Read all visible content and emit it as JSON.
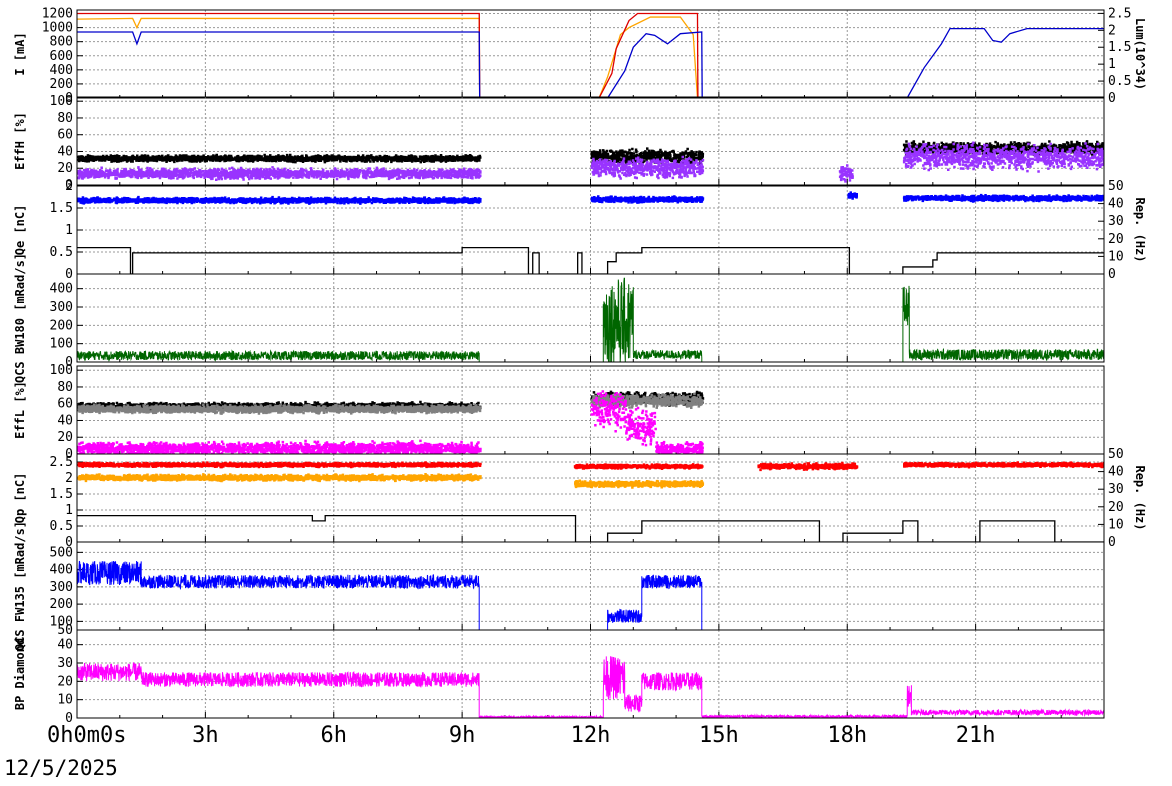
{
  "date_label": "12/5/2025",
  "time_axis": {
    "ticks": [
      {
        "hour": 0,
        "label": "0h0m0s"
      },
      {
        "hour": 3,
        "label": "3h"
      },
      {
        "hour": 6,
        "label": "6h"
      },
      {
        "hour": 9,
        "label": "9h"
      },
      {
        "hour": 12,
        "label": "12h"
      },
      {
        "hour": 15,
        "label": "15h"
      },
      {
        "hour": 18,
        "label": "18h"
      },
      {
        "hour": 21,
        "label": "21h"
      }
    ],
    "range": [
      0,
      24
    ]
  },
  "chart_data": [
    {
      "type": "line",
      "ylabel": "I [mA]",
      "ylim": [
        0,
        1250
      ],
      "yticks": [
        "0",
        "200",
        "400",
        "600",
        "800",
        "1000",
        "1200"
      ],
      "y2label": "Lum(10^34)",
      "y2lim": [
        0,
        2.6
      ],
      "y2ticks": [
        "0",
        "0.5",
        "1",
        "1.5",
        "2",
        "2.5"
      ],
      "series": [
        {
          "color": "#ffa500",
          "points": [
            [
              0,
              1120
            ],
            [
              1.3,
              1130
            ],
            [
              1.4,
              1000
            ],
            [
              1.5,
              1130
            ],
            [
              9.4,
              1130
            ],
            [
              9.41,
              0
            ],
            [
              12.2,
              0
            ],
            [
              12.4,
              300
            ],
            [
              12.7,
              900
            ],
            [
              12.9,
              1000
            ],
            [
              13.4,
              1150
            ],
            [
              14.1,
              1150
            ],
            [
              14.4,
              900
            ],
            [
              14.5,
              0
            ],
            [
              24,
              0
            ]
          ]
        },
        {
          "color": "#dd0000",
          "points": [
            [
              0,
              1200
            ],
            [
              9.4,
              1200
            ],
            [
              9.41,
              0
            ],
            [
              12.2,
              0
            ],
            [
              12.5,
              350
            ],
            [
              12.6,
              700
            ],
            [
              12.9,
              1100
            ],
            [
              13.1,
              1200
            ],
            [
              14.5,
              1200
            ],
            [
              14.51,
              0
            ],
            [
              24,
              0
            ]
          ]
        },
        {
          "color": "#0000cc",
          "axis": "y2",
          "points": [
            [
              0,
              1.95
            ],
            [
              1.3,
              1.95
            ],
            [
              1.4,
              1.6
            ],
            [
              1.5,
              1.95
            ],
            [
              9.4,
              1.95
            ],
            [
              9.41,
              0
            ],
            [
              12.4,
              0
            ],
            [
              12.8,
              0.8
            ],
            [
              13.0,
              1.5
            ],
            [
              13.3,
              1.9
            ],
            [
              13.5,
              1.85
            ],
            [
              13.8,
              1.6
            ],
            [
              14.1,
              1.9
            ],
            [
              14.6,
              1.95
            ],
            [
              14.61,
              0
            ],
            [
              19.4,
              0
            ],
            [
              19.8,
              0.9
            ],
            [
              20.2,
              1.6
            ],
            [
              20.4,
              2.05
            ],
            [
              21.2,
              2.05
            ],
            [
              21.4,
              1.7
            ],
            [
              21.6,
              1.65
            ],
            [
              21.8,
              1.9
            ],
            [
              22.2,
              2.05
            ],
            [
              24,
              2.05
            ]
          ]
        }
      ]
    },
    {
      "type": "scatter",
      "ylabel": "EffH [%]",
      "ylim": [
        0,
        105
      ],
      "yticks": [
        "0",
        "20",
        "40",
        "60",
        "80",
        "100"
      ],
      "series": [
        {
          "color": "#000000",
          "segments": [
            [
              0,
              9.4,
              33,
              2.5
            ],
            [
              12.0,
              14.6,
              35,
              6
            ],
            [
              19.3,
              24,
              45,
              5
            ]
          ]
        },
        {
          "color": "#9933ff",
          "segments": [
            [
              0,
              9.4,
              15,
              4
            ],
            [
              12.0,
              14.6,
              22,
              8
            ],
            [
              17.8,
              18.1,
              15,
              6
            ],
            [
              19.3,
              24,
              35,
              10
            ]
          ]
        }
      ]
    },
    {
      "type": "scatter",
      "ylabel": "Qe [nC]",
      "ylim": [
        0,
        2.0
      ],
      "yticks": [
        "0",
        "0.5",
        "1",
        "1.5",
        "2"
      ],
      "y2label": "Rep. (Hz)",
      "y2lim": [
        0,
        50
      ],
      "y2ticks": [
        "0",
        "10",
        "20",
        "30",
        "40",
        "50"
      ],
      "series": [
        {
          "color": "#0000ff",
          "segments": [
            [
              0,
              9.4,
              1.7,
              0.04
            ],
            [
              12.0,
              14.6,
              1.72,
              0.04
            ],
            [
              18.0,
              18.2,
              1.8,
              0.05
            ],
            [
              19.3,
              24,
              1.75,
              0.04
            ]
          ]
        },
        {
          "color": "#000000",
          "type": "step",
          "points": [
            [
              0,
              15
            ],
            [
              1.2,
              15
            ],
            [
              1.25,
              0
            ],
            [
              1.3,
              12
            ],
            [
              5.5,
              12
            ],
            [
              9.0,
              15
            ],
            [
              10.5,
              15
            ],
            [
              10.55,
              0
            ],
            [
              10.65,
              12
            ],
            [
              10.8,
              0
            ],
            [
              11.6,
              0
            ],
            [
              11.7,
              12
            ],
            [
              11.8,
              0
            ],
            [
              12.3,
              0
            ],
            [
              12.4,
              7
            ],
            [
              12.6,
              12
            ],
            [
              13.2,
              15
            ],
            [
              18.0,
              15
            ],
            [
              18.05,
              0
            ],
            [
              19.2,
              0
            ],
            [
              19.3,
              4
            ],
            [
              20.0,
              8
            ],
            [
              20.1,
              12
            ],
            [
              24,
              12
            ]
          ]
        }
      ]
    },
    {
      "type": "bar",
      "ylabel": "QCS BW180 [mRad/s]",
      "ylim": [
        0,
        480
      ],
      "yticks": [
        "0",
        "100",
        "200",
        "300",
        "400"
      ],
      "series": [
        {
          "color": "#006600",
          "noise": [
            [
              0,
              9.4,
              35,
              25
            ],
            [
              9.4,
              12.3,
              0,
              0
            ],
            [
              12.3,
              13.0,
              220,
              240
            ],
            [
              13.0,
              14.6,
              40,
              25
            ],
            [
              14.6,
              19.3,
              0,
              0
            ],
            [
              19.3,
              19.45,
              300,
              120
            ],
            [
              19.45,
              24,
              40,
              30
            ]
          ]
        }
      ]
    },
    {
      "type": "scatter",
      "ylabel": "EffL [%]",
      "ylim": [
        0,
        105
      ],
      "yticks": [
        "0",
        "20",
        "40",
        "60",
        "80",
        "100"
      ],
      "series": [
        {
          "color": "#000000",
          "segments": [
            [
              0,
              9.4,
              58,
              3
            ],
            [
              12.0,
              14.6,
              68,
              5
            ]
          ]
        },
        {
          "color": "#808080",
          "segments": [
            [
              0,
              9.4,
              55,
              3
            ],
            [
              12.0,
              14.6,
              65,
              5
            ]
          ]
        },
        {
          "color": "#ff00ff",
          "segments": [
            [
              0,
              9.4,
              8,
              5
            ],
            [
              12.0,
              12.8,
              55,
              15
            ],
            [
              12.8,
              13.5,
              35,
              15
            ],
            [
              13.5,
              14.6,
              8,
              5
            ]
          ]
        }
      ]
    },
    {
      "type": "scatter",
      "ylabel": "Qp [nC]",
      "ylim": [
        0,
        2.75
      ],
      "yticks": [
        "0",
        "0.5",
        "1",
        "1.5",
        "2",
        "2.5"
      ],
      "y2label": "Rep. (Hz)",
      "y2lim": [
        0,
        50
      ],
      "y2ticks": [
        "0",
        "10",
        "20",
        "30",
        "40",
        "50"
      ],
      "series": [
        {
          "color": "#ff0000",
          "segments": [
            [
              0,
              9.4,
              2.45,
              0.04
            ],
            [
              11.6,
              14.6,
              2.4,
              0.04
            ],
            [
              15.9,
              18.2,
              2.4,
              0.06
            ],
            [
              19.3,
              24,
              2.45,
              0.04
            ]
          ]
        },
        {
          "color": "#ffa500",
          "segments": [
            [
              0,
              9.4,
              2.05,
              0.06
            ],
            [
              11.6,
              14.6,
              1.85,
              0.06
            ]
          ]
        },
        {
          "color": "#000000",
          "type": "step",
          "points": [
            [
              0,
              15
            ],
            [
              5.4,
              15
            ],
            [
              5.5,
              12
            ],
            [
              5.8,
              15
            ],
            [
              11.6,
              15
            ],
            [
              11.65,
              0
            ],
            [
              12.3,
              0
            ],
            [
              12.4,
              5
            ],
            [
              13.2,
              12
            ],
            [
              17.3,
              12
            ],
            [
              17.35,
              0
            ],
            [
              17.8,
              0
            ],
            [
              17.9,
              5
            ],
            [
              19.2,
              5
            ],
            [
              19.3,
              12
            ],
            [
              19.6,
              12
            ],
            [
              19.65,
              0
            ],
            [
              21.0,
              0
            ],
            [
              21.1,
              12
            ],
            [
              22.8,
              12
            ],
            [
              22.85,
              0
            ],
            [
              24,
              0
            ]
          ]
        }
      ]
    },
    {
      "type": "line",
      "ylabel": "QCS FW135 [mRad/s]",
      "ylim": [
        50,
        560
      ],
      "yticks": [
        "50",
        "100",
        "200",
        "300",
        "400",
        "500"
      ],
      "series": [
        {
          "color": "#0000ff",
          "noise": [
            [
              0,
              1.5,
              380,
              70
            ],
            [
              1.5,
              9.4,
              330,
              40
            ],
            [
              9.4,
              12.4,
              50,
              0
            ],
            [
              12.4,
              13.2,
              130,
              40
            ],
            [
              13.2,
              14.6,
              330,
              40
            ],
            [
              14.6,
              24,
              50,
              0
            ]
          ]
        }
      ]
    },
    {
      "type": "line",
      "ylabel": "BP Diamond",
      "ylim": [
        0,
        48
      ],
      "yticks": [
        "0",
        "10",
        "20",
        "30",
        "40"
      ],
      "series": [
        {
          "color": "#ff00ff",
          "noise": [
            [
              0,
              1.5,
              25,
              5
            ],
            [
              1.5,
              9.4,
              21,
              4
            ],
            [
              9.4,
              12.3,
              0.5,
              0.5
            ],
            [
              12.3,
              12.8,
              22,
              12
            ],
            [
              12.8,
              13.2,
              8,
              5
            ],
            [
              13.2,
              14.6,
              20,
              5
            ],
            [
              14.6,
              19.4,
              0.8,
              0.8
            ],
            [
              19.4,
              19.5,
              12,
              6
            ],
            [
              19.5,
              24,
              3,
              1.5
            ]
          ]
        }
      ]
    }
  ]
}
